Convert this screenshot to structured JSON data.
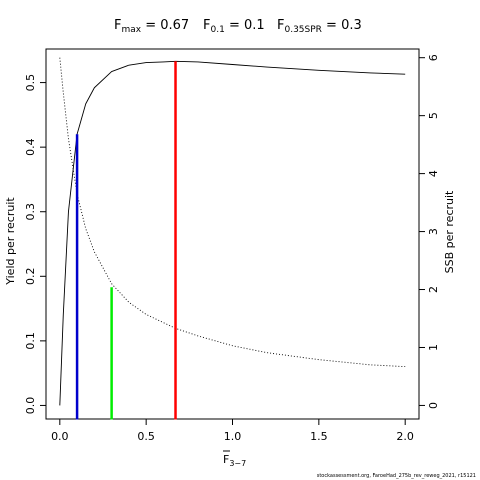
{
  "chart_data": {
    "type": "line",
    "title": {
      "fmax_label": "F",
      "fmax_sub": "max",
      "fmax_value": " = 0.67",
      "f01_label": "F",
      "f01_sub": "0.1",
      "f01_value": " = 0.1",
      "fspr_label": "F",
      "fspr_sub": "0.35SPR",
      "fspr_value": " = 0.3"
    },
    "xlabel": "F",
    "xlabel_sub": "3−7",
    "ylabel_left": "Yield per recruit",
    "ylabel_right": "SSB per recruit",
    "xlim": [
      -0.08,
      2.08
    ],
    "ylim_left": [
      -0.021,
      0.552
    ],
    "ylim_right": [
      -0.234,
      6.15
    ],
    "x_ticks": [
      0.0,
      0.5,
      1.0,
      1.5,
      2.0
    ],
    "x_tick_labels": [
      "0.0",
      "0.5",
      "1.0",
      "1.5",
      "2.0"
    ],
    "y_left_ticks": [
      0.0,
      0.1,
      0.2,
      0.3,
      0.4,
      0.5
    ],
    "y_left_tick_labels": [
      "0.0",
      "0.1",
      "0.2",
      "0.3",
      "0.4",
      "0.5"
    ],
    "y_right_ticks": [
      0,
      1,
      2,
      3,
      4,
      5,
      6
    ],
    "y_right_tick_labels": [
      "0",
      "1",
      "2",
      "3",
      "4",
      "5",
      "6"
    ],
    "series": [
      {
        "axis": "left",
        "style": "solid",
        "color": "#000000",
        "x": [
          0.0,
          0.02,
          0.05,
          0.1,
          0.15,
          0.2,
          0.3,
          0.4,
          0.5,
          0.6,
          0.67,
          0.8,
          1.0,
          1.2,
          1.5,
          1.8,
          2.0
        ],
        "y": [
          0.0,
          0.14,
          0.3,
          0.42,
          0.467,
          0.492,
          0.517,
          0.527,
          0.531,
          0.532,
          0.533,
          0.532,
          0.528,
          0.524,
          0.519,
          0.515,
          0.513
        ]
      },
      {
        "axis": "right",
        "style": "dotted",
        "color": "#000000",
        "x": [
          0.0,
          0.02,
          0.05,
          0.1,
          0.15,
          0.2,
          0.3,
          0.4,
          0.5,
          0.67,
          0.8,
          1.0,
          1.2,
          1.5,
          1.8,
          2.0
        ],
        "y": [
          6.0,
          5.4,
          4.6,
          3.65,
          3.05,
          2.65,
          2.1,
          1.78,
          1.57,
          1.33,
          1.2,
          1.03,
          0.91,
          0.79,
          0.7,
          0.67
        ]
      }
    ],
    "reference_lines": [
      {
        "x": 0.1,
        "y_top": 0.42,
        "color": "#0000cc"
      },
      {
        "x": 0.3,
        "y_top": 0.183,
        "color": "#00ee00"
      },
      {
        "x": 0.67,
        "y_top": 0.533,
        "color": "#ff0000"
      }
    ],
    "footnote": "stockassessment.org, FaroeHad_275b_rev_reweg_2021, r15121"
  }
}
